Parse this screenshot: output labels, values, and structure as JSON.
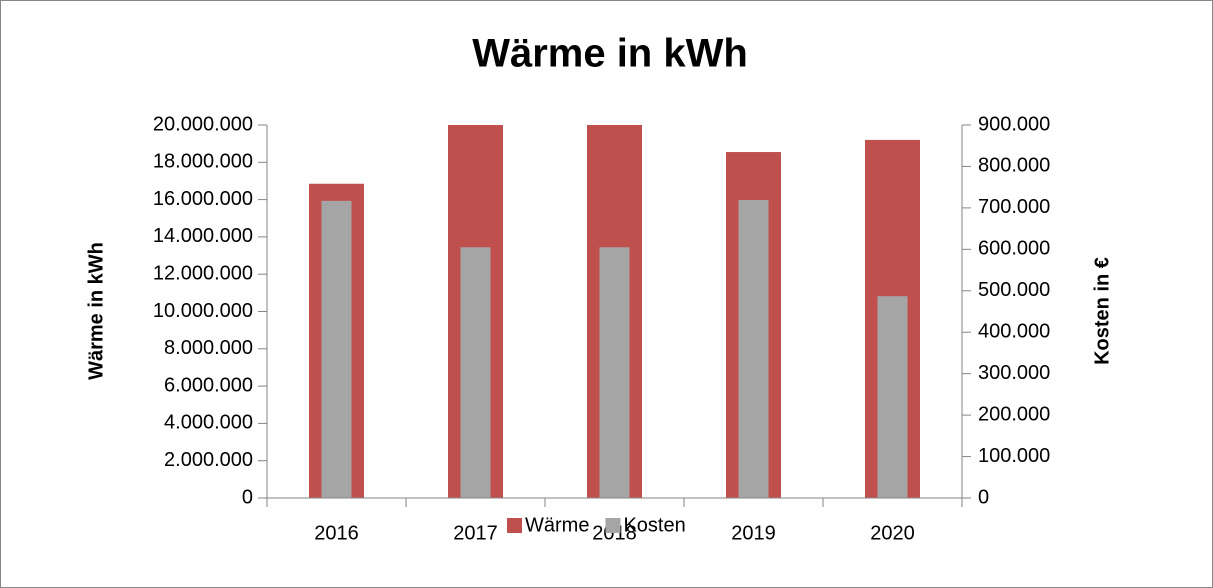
{
  "chart_data": {
    "type": "bar",
    "title": "Wärme in kWh",
    "ylabel": "Wärme in kWh",
    "y2label": "Kosten in €",
    "categories": [
      "2016",
      "2017",
      "2018",
      "2019",
      "2020"
    ],
    "series": [
      {
        "name": "Wärme",
        "color": "#c0504d",
        "values": [
          16850000,
          20000000,
          20000000,
          18550000,
          19200000
        ]
      },
      {
        "name": "Kosten",
        "color": "#a5a5a5",
        "axis": "y2",
        "values": [
          717000,
          605000,
          605000,
          719000,
          487000
        ]
      }
    ],
    "ylim": [
      0,
      20000000
    ],
    "yticks": [
      0,
      {
        "value": 2000000,
        "label": "2.000.000"
      },
      {
        "value": 4000000,
        "label": "4.000.000"
      },
      {
        "value": 6000000,
        "label": "6.000.000"
      },
      {
        "value": 8000000,
        "label": "8.000.000"
      },
      {
        "value": 10000000,
        "label": "10.000.000"
      },
      {
        "value": 12000000,
        "label": "12.000.000"
      },
      {
        "value": 14000000,
        "label": "14.000.000"
      },
      {
        "value": 16000000,
        "label": "16.000.000"
      },
      {
        "value": 18000000,
        "label": "18.000.000"
      },
      {
        "value": 20000000,
        "label": "20.000.000"
      }
    ],
    "y2lim": [
      0,
      900000
    ],
    "y2ticks": [
      0,
      {
        "value": 100000,
        "label": "100.000"
      },
      {
        "value": 200000,
        "label": "200.000"
      },
      {
        "value": 300000,
        "label": "300.000"
      },
      {
        "value": 400000,
        "label": "400.000"
      },
      {
        "value": 500000,
        "label": "500.000"
      },
      {
        "value": 600000,
        "label": "600.000"
      },
      {
        "value": 700000,
        "label": "700.000"
      },
      {
        "value": 800000,
        "label": "800.000"
      },
      {
        "value": 900000,
        "label": "900.000"
      }
    ],
    "grid": false,
    "legend": "bottom"
  }
}
